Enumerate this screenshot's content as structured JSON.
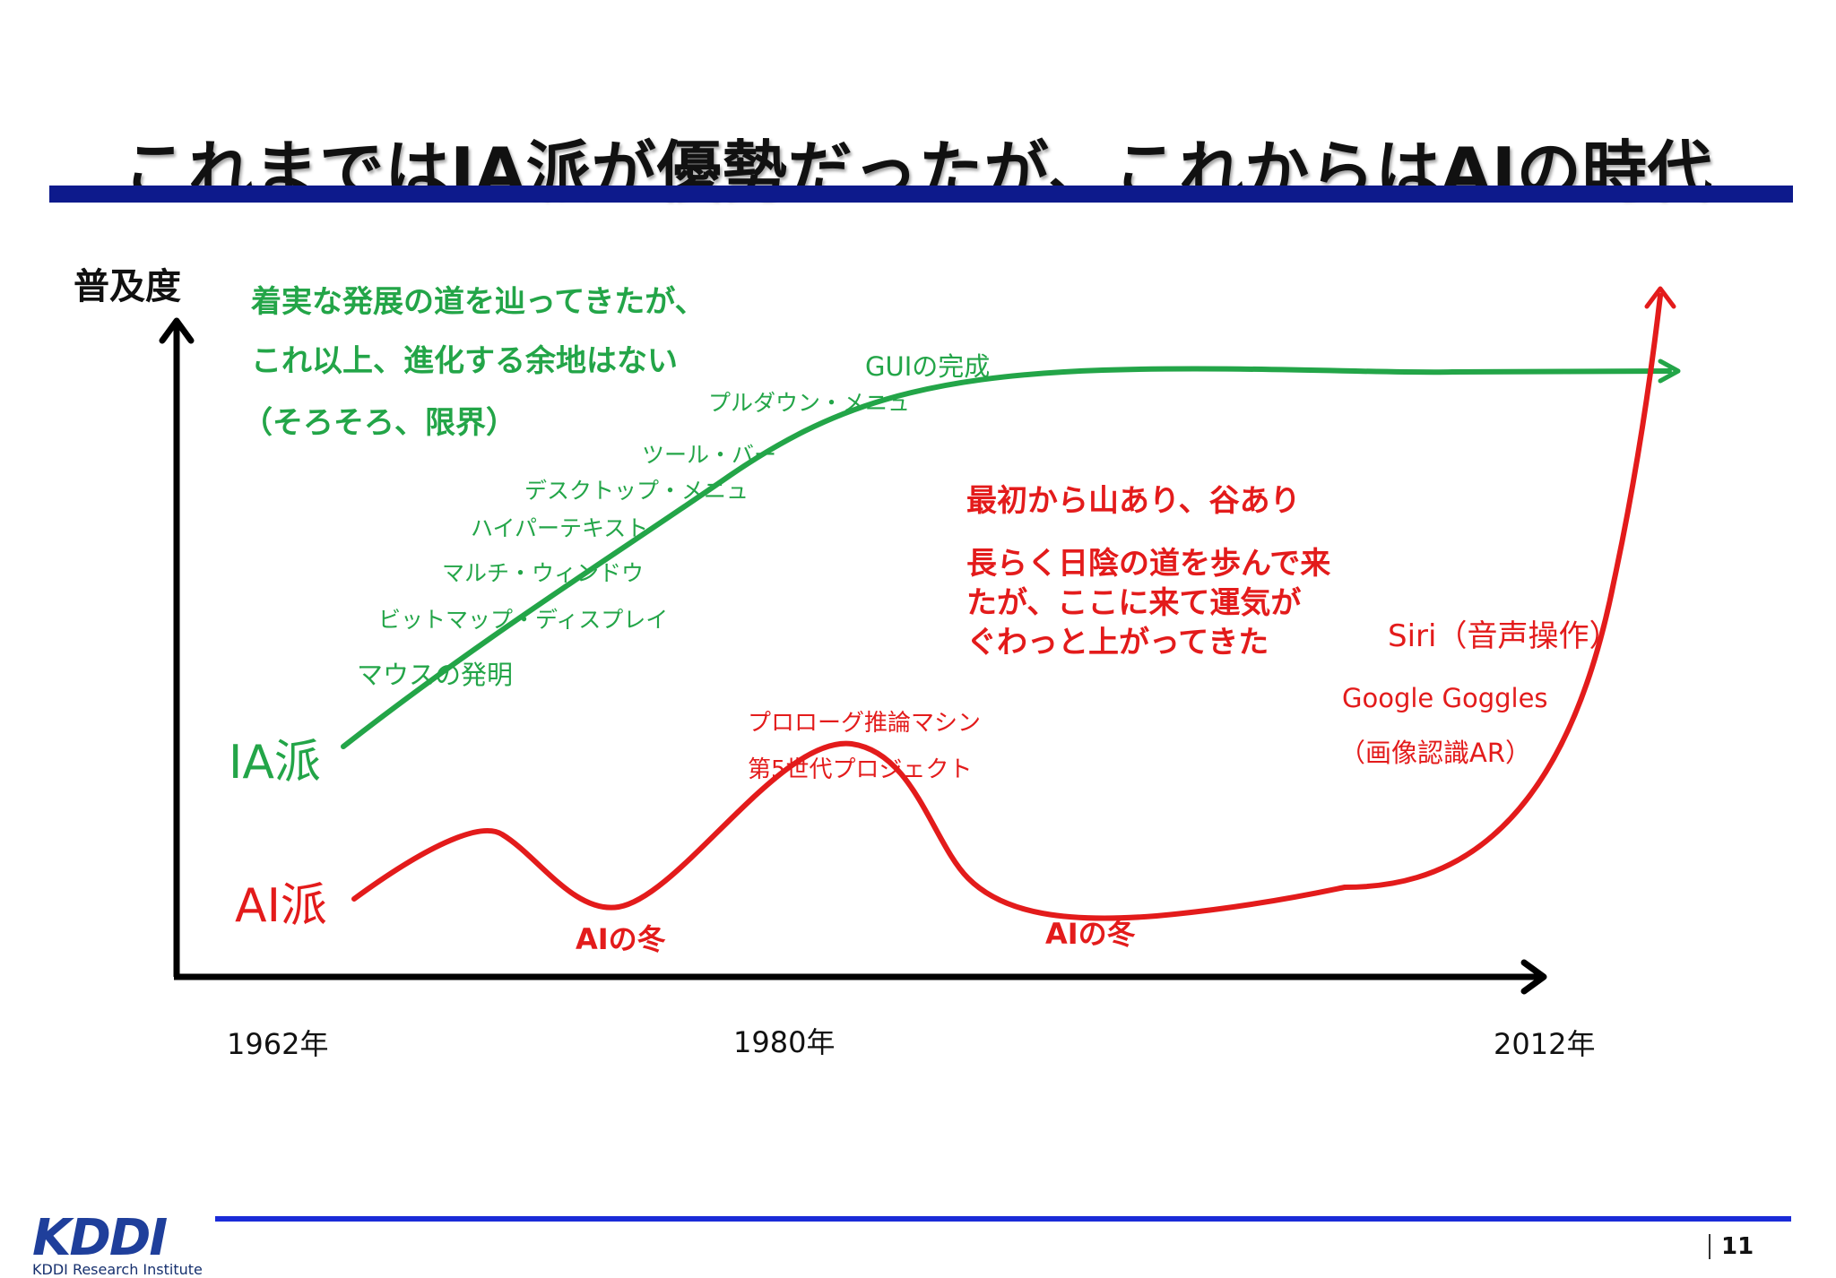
{
  "title": "これまではIA派が優勢だったが、これからはAIの時代",
  "y_axis_label": "普及度",
  "x_axis_labels": [
    "1962年",
    "1980年",
    "2012年"
  ],
  "ia": {
    "series_label": "IA派",
    "note_lines": [
      "着実な発展の道を辿ってきたが、",
      "これ以上、進化する余地はない",
      "（そろそろ、限界）"
    ],
    "milestones": [
      "マウスの発明",
      "ビットマップ・ディスプレイ",
      "マルチ・ウィンドウ",
      "ハイパーテキスト",
      "デスクトップ・メニュ",
      "ツール・バー",
      "プルダウン・メニュ",
      "GUIの完成"
    ]
  },
  "ai": {
    "series_label": "AI派",
    "note_lines_1": [
      "最初から山あり、谷あり"
    ],
    "note_lines_2": [
      "長らく日陰の道を歩んで来",
      "たが、ここに来て運気が",
      "ぐわっと上がってきた"
    ],
    "milestones": [
      "プロローグ推論マシン",
      "第5世代プロジェクト",
      "Google Goggles",
      "（画像認識AR）",
      "Siri（音声操作）"
    ],
    "winters": [
      "AIの冬",
      "AIの冬"
    ]
  },
  "colors": {
    "ia": "#23a548",
    "ai": "#e31b1b",
    "title_bar": "#0d1a8c",
    "footer_line": "#1a2bd8",
    "logo": "#1f3f9b"
  },
  "footer": {
    "logo_text": "KDDI",
    "logo_subtitle": "KDDI Research Institute",
    "page_number": "11"
  }
}
